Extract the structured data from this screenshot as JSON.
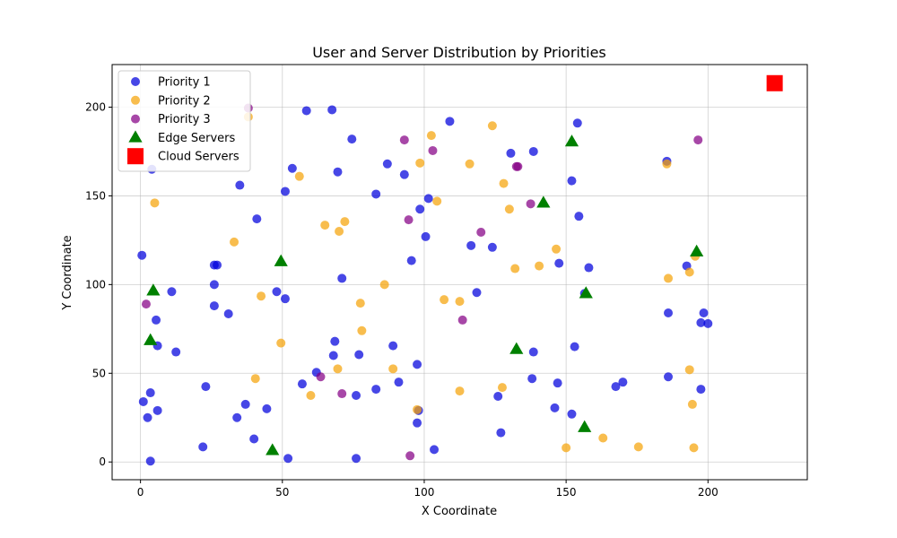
{
  "chart_data": {
    "type": "scatter",
    "title": "User and Server Distribution by Priorities",
    "xlabel": "X Coordinate",
    "ylabel": "Y Coordinate",
    "xlim": [
      -10,
      235
    ],
    "ylim": [
      -10,
      224
    ],
    "xticks": [
      0,
      50,
      100,
      150,
      200
    ],
    "yticks": [
      0,
      50,
      100,
      150,
      200
    ],
    "grid": true,
    "legend_position": "top-left",
    "series": [
      {
        "name": "Priority 1",
        "marker": "circle",
        "color": "#0000dd",
        "points": [
          [
            0.5,
            116.5
          ],
          [
            1,
            34
          ],
          [
            2.5,
            25
          ],
          [
            3.5,
            39
          ],
          [
            3.5,
            0.5
          ],
          [
            4,
            165
          ],
          [
            5.5,
            80
          ],
          [
            6,
            29
          ],
          [
            6,
            65.5
          ],
          [
            11,
            96
          ],
          [
            12.5,
            62
          ],
          [
            22,
            8.5
          ],
          [
            23,
            42.5
          ],
          [
            26,
            100
          ],
          [
            26,
            111
          ],
          [
            26,
            88
          ],
          [
            27,
            111
          ],
          [
            31,
            83.5
          ],
          [
            34,
            25
          ],
          [
            35,
            156
          ],
          [
            37,
            32.5
          ],
          [
            40,
            13
          ],
          [
            41,
            137
          ],
          [
            44.5,
            30
          ],
          [
            48,
            96
          ],
          [
            51,
            152.5
          ],
          [
            51,
            92
          ],
          [
            52,
            2
          ],
          [
            53.5,
            165.5
          ],
          [
            57,
            44
          ],
          [
            58.5,
            198
          ],
          [
            62,
            50.5
          ],
          [
            67.5,
            198.5
          ],
          [
            68,
            60
          ],
          [
            68.5,
            68
          ],
          [
            69.5,
            163.5
          ],
          [
            71,
            103.5
          ],
          [
            74.5,
            182
          ],
          [
            76,
            37.5
          ],
          [
            76,
            2
          ],
          [
            77,
            60.5
          ],
          [
            83,
            41
          ],
          [
            83,
            151
          ],
          [
            87,
            168
          ],
          [
            89,
            65.5
          ],
          [
            91,
            45
          ],
          [
            93,
            162
          ],
          [
            95.5,
            113.5
          ],
          [
            97.5,
            55
          ],
          [
            97.5,
            22
          ],
          [
            98,
            29
          ],
          [
            98.5,
            142.5
          ],
          [
            100.5,
            127
          ],
          [
            101.5,
            148.5
          ],
          [
            103.5,
            7
          ],
          [
            109,
            192
          ],
          [
            116.5,
            122
          ],
          [
            118.5,
            95.5
          ],
          [
            124,
            121
          ],
          [
            126,
            37
          ],
          [
            127,
            16.5
          ],
          [
            130.5,
            174
          ],
          [
            138,
            47
          ],
          [
            138.5,
            175
          ],
          [
            138.5,
            62
          ],
          [
            146,
            30.5
          ],
          [
            147,
            44.5
          ],
          [
            147.5,
            112
          ],
          [
            152,
            158.5
          ],
          [
            152,
            27
          ],
          [
            153,
            65
          ],
          [
            154,
            191
          ],
          [
            154.5,
            138.5
          ],
          [
            156.5,
            95
          ],
          [
            158,
            109.5
          ],
          [
            167.5,
            42.5
          ],
          [
            170,
            45
          ],
          [
            185.5,
            169.5
          ],
          [
            186,
            84
          ],
          [
            186,
            48
          ],
          [
            192.5,
            110.5
          ],
          [
            197.5,
            78.5
          ],
          [
            197.5,
            41
          ],
          [
            198.5,
            84
          ],
          [
            200,
            78
          ]
        ]
      },
      {
        "name": "Priority 2",
        "marker": "circle",
        "color": "#f5a30a",
        "points": [
          [
            5,
            146
          ],
          [
            33,
            124
          ],
          [
            38,
            194.5
          ],
          [
            40.5,
            47
          ],
          [
            42.5,
            93.5
          ],
          [
            49.5,
            67
          ],
          [
            56,
            161
          ],
          [
            60,
            37.5
          ],
          [
            65,
            133.5
          ],
          [
            69.5,
            52.5
          ],
          [
            70,
            130
          ],
          [
            72,
            135.5
          ],
          [
            77.5,
            89.5
          ],
          [
            78,
            74
          ],
          [
            86,
            100
          ],
          [
            89,
            52.5
          ],
          [
            97.5,
            29.5
          ],
          [
            98.5,
            168.5
          ],
          [
            102.5,
            184
          ],
          [
            104.5,
            147
          ],
          [
            107,
            91.5
          ],
          [
            112.5,
            90.5
          ],
          [
            112.5,
            40
          ],
          [
            116,
            168
          ],
          [
            124,
            189.5
          ],
          [
            127.5,
            42
          ],
          [
            128,
            157
          ],
          [
            130,
            142.5
          ],
          [
            132,
            109
          ],
          [
            140.5,
            110.5
          ],
          [
            146.5,
            120
          ],
          [
            150,
            8
          ],
          [
            163,
            13.5
          ],
          [
            175.5,
            8.5
          ],
          [
            185.5,
            168
          ],
          [
            186,
            103.5
          ],
          [
            193.5,
            107
          ],
          [
            193.5,
            52
          ],
          [
            194.5,
            32.5
          ],
          [
            195,
            8
          ],
          [
            195.5,
            116
          ]
        ]
      },
      {
        "name": "Priority 3",
        "marker": "circle",
        "color": "#850085",
        "points": [
          [
            2,
            89
          ],
          [
            38,
            199.5
          ],
          [
            63.5,
            48
          ],
          [
            71,
            38.5
          ],
          [
            93,
            181.5
          ],
          [
            94.5,
            136.5
          ],
          [
            95,
            3.5
          ],
          [
            103,
            175.5
          ],
          [
            113.5,
            80
          ],
          [
            120,
            129.5
          ],
          [
            132.5,
            166.5
          ],
          [
            133,
            166.5
          ],
          [
            137.5,
            145.5
          ],
          [
            196.5,
            181.5
          ]
        ]
      },
      {
        "name": "Edge Servers",
        "marker": "triangle",
        "color": "#008000",
        "points": [
          [
            3.5,
            68.5
          ],
          [
            4.5,
            96.5
          ],
          [
            46.5,
            6.5
          ],
          [
            49.5,
            113
          ],
          [
            132.5,
            63.5
          ],
          [
            142,
            146
          ],
          [
            152,
            180.5
          ],
          [
            156.5,
            19.5
          ],
          [
            157,
            95
          ],
          [
            196,
            118.5
          ]
        ]
      },
      {
        "name": "Cloud Servers",
        "marker": "square",
        "color": "#ff0000",
        "points": [
          [
            223.5,
            213.5
          ]
        ]
      }
    ]
  }
}
